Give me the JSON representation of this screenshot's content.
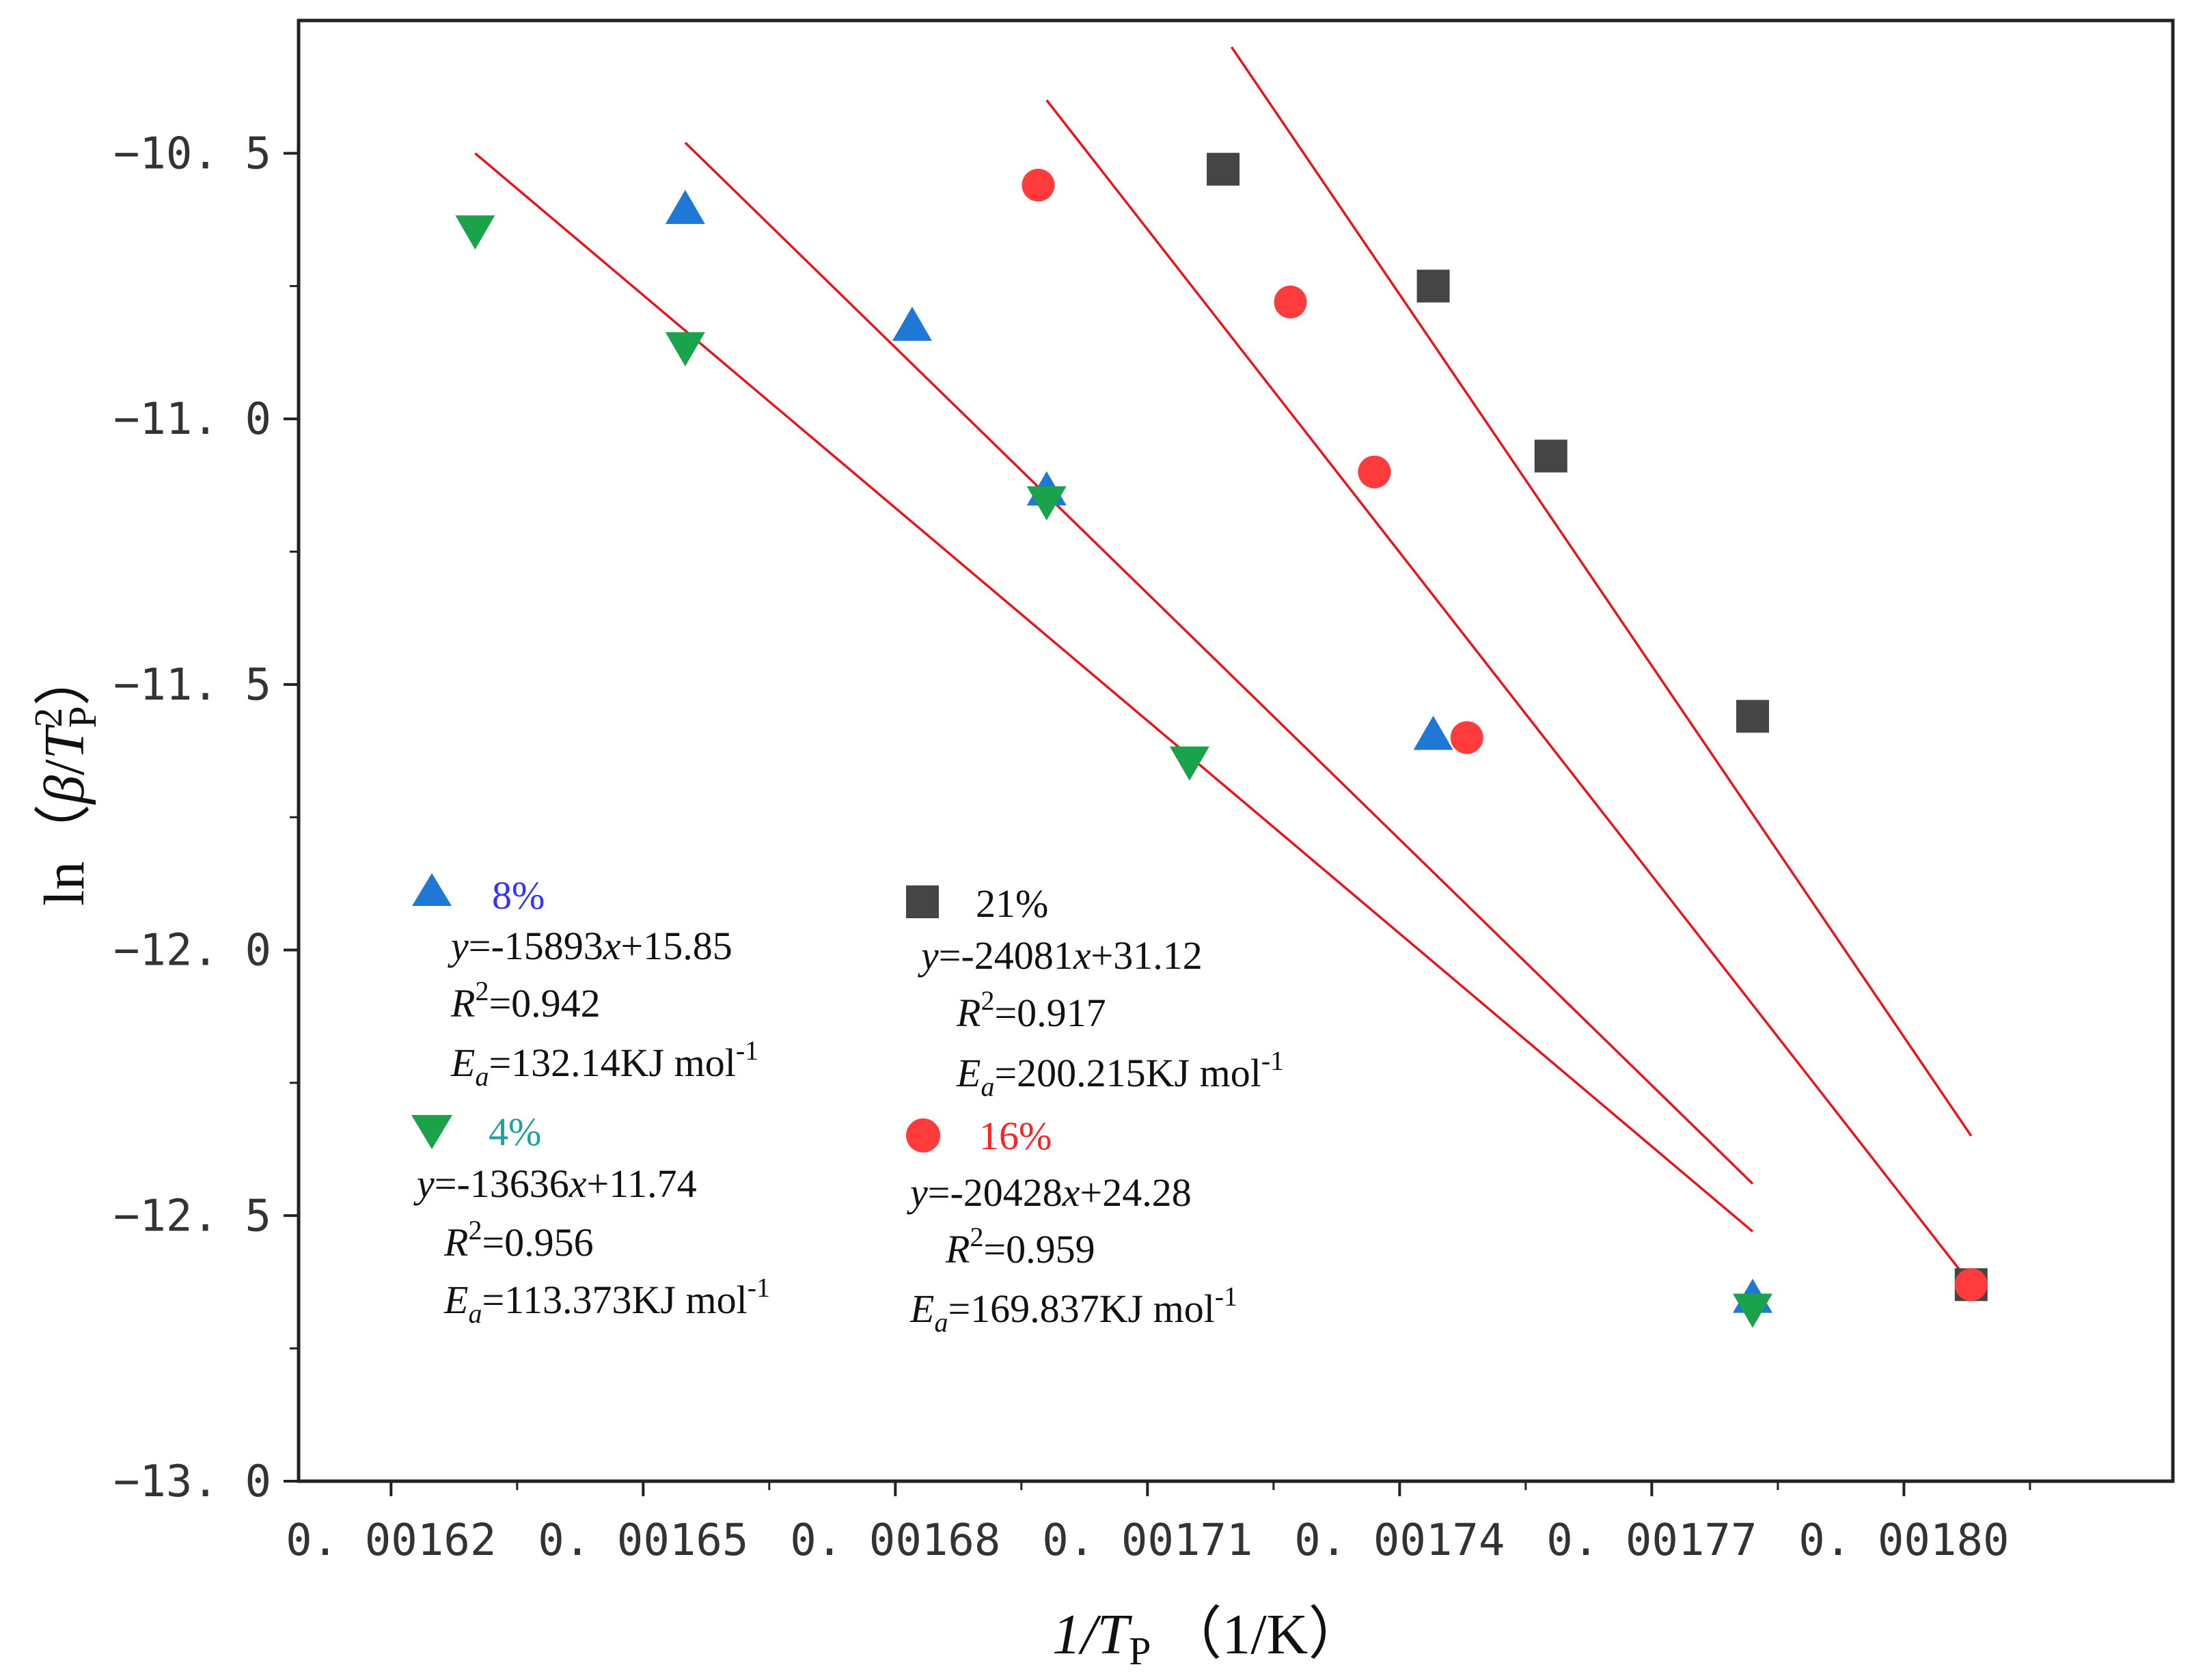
{
  "chart_data": {
    "type": "scatter",
    "xlabel": "1/T",
    "xlabel_sub": "P",
    "xlabel_unit": "（1/K）",
    "ylabel_prefix": "ln（",
    "ylabel_beta": "β",
    "ylabel_slash": "/",
    "ylabel_T": "T",
    "ylabel_sup": "2",
    "ylabel_sub": "P",
    "ylabel_close": "）",
    "xlim": [
      0.001609,
      0.001832
    ],
    "ylim": [
      -13.0,
      -10.25
    ],
    "x_ticks": [
      0.00162,
      0.00165,
      0.00168,
      0.00171,
      0.00174,
      0.00177,
      0.0018
    ],
    "x_tick_labels": [
      "0. 00162",
      "0. 00165",
      "0. 00168",
      "0. 00171",
      "0. 00174",
      "0. 00177",
      "0. 00180"
    ],
    "x_minor_ticks": [
      0.001635,
      0.001665,
      0.001695,
      0.001725,
      0.001755,
      0.001785,
      0.001815
    ],
    "y_ticks": [
      -10.5,
      -11.0,
      -11.5,
      -12.0,
      -12.5,
      -13.0
    ],
    "y_tick_labels": [
      "−10. 5",
      "−11. 0",
      "−11. 5",
      "−12. 0",
      "−12. 5",
      "−13. 0"
    ],
    "y_minor_ticks": [
      -10.75,
      -11.25,
      -11.75,
      -12.25,
      -12.75
    ],
    "series": [
      {
        "name": "8%",
        "marker": "triangle-up",
        "color": "#1f77d6",
        "name_color": "#3333ff",
        "x": [
          0.001655,
          0.001682,
          0.001698,
          0.001744,
          0.001782
        ],
        "y": [
          -10.61,
          -10.83,
          -11.14,
          -11.6,
          -12.66
        ],
        "fit": {
          "x": [
            0.001655,
            0.001782
          ],
          "y": [
            -10.48,
            -12.44
          ]
        },
        "equation_y": "y",
        "equation_rest": "=-15893",
        "equation_x": "x",
        "equation_tail": "+15.85",
        "r2_R": "R",
        "r2_sup": "2",
        "r2_value": "=0.942",
        "ea_E": "E",
        "ea_sub": "a",
        "ea_value": "=132.14KJ mol",
        "ea_sup": "-1"
      },
      {
        "name": "4%",
        "marker": "triangle-down",
        "color": "#1aa34a",
        "name_color": "#20a0a0",
        "x": [
          0.00163,
          0.001655,
          0.001698,
          0.001715,
          0.001782
        ],
        "y": [
          -10.64,
          -10.86,
          -11.15,
          -11.64,
          -12.67
        ],
        "fit": {
          "x": [
            0.00163,
            0.001782
          ],
          "y": [
            -10.5,
            -12.53
          ]
        },
        "equation_y": "y",
        "equation_rest": "=-13636",
        "equation_x": "x",
        "equation_tail": "+11.74",
        "r2_R": "R",
        "r2_sup": "2",
        "r2_value": "=0.956",
        "ea_E": "E",
        "ea_sub": "a",
        "ea_value": "=113.373KJ mol",
        "ea_sup": "-1"
      },
      {
        "name": "21%",
        "marker": "square",
        "color": "#454545",
        "name_color": "#111111",
        "x": [
          0.001719,
          0.001744,
          0.001758,
          0.001782,
          0.001808
        ],
        "y": [
          -10.53,
          -10.75,
          -11.07,
          -11.56,
          -12.63
        ],
        "fit": {
          "x": [
            0.00172,
            0.001808
          ],
          "y": [
            -10.3,
            -12.35
          ]
        },
        "equation_y": "y",
        "equation_rest": "=-24081",
        "equation_x": "x",
        "equation_tail": "+31.12",
        "r2_R": "R",
        "r2_sup": "2",
        "r2_value": "=0.917",
        "ea_E": "E",
        "ea_sub": "a",
        "ea_value": "=200.215KJ mol",
        "ea_sup": "-1"
      },
      {
        "name": "16%",
        "marker": "circle",
        "color": "#ff3b3b",
        "name_color": "#ff2222",
        "x": [
          0.001697,
          0.001727,
          0.001737,
          0.001748,
          0.001808
        ],
        "y": [
          -10.56,
          -10.78,
          -11.1,
          -11.6,
          -12.63
        ],
        "fit": {
          "x": [
            0.001698,
            0.001808
          ],
          "y": [
            -10.4,
            -12.63
          ]
        },
        "equation_y": "y",
        "equation_rest": "=-20428",
        "equation_x": "x",
        "equation_tail": "+24.28",
        "r2_R": "R",
        "r2_sup": "2",
        "r2_value": "=0.959",
        "ea_E": "E",
        "ea_sub": "a",
        "ea_value": "=169.837KJ mol",
        "ea_sup": "-1"
      }
    ]
  }
}
